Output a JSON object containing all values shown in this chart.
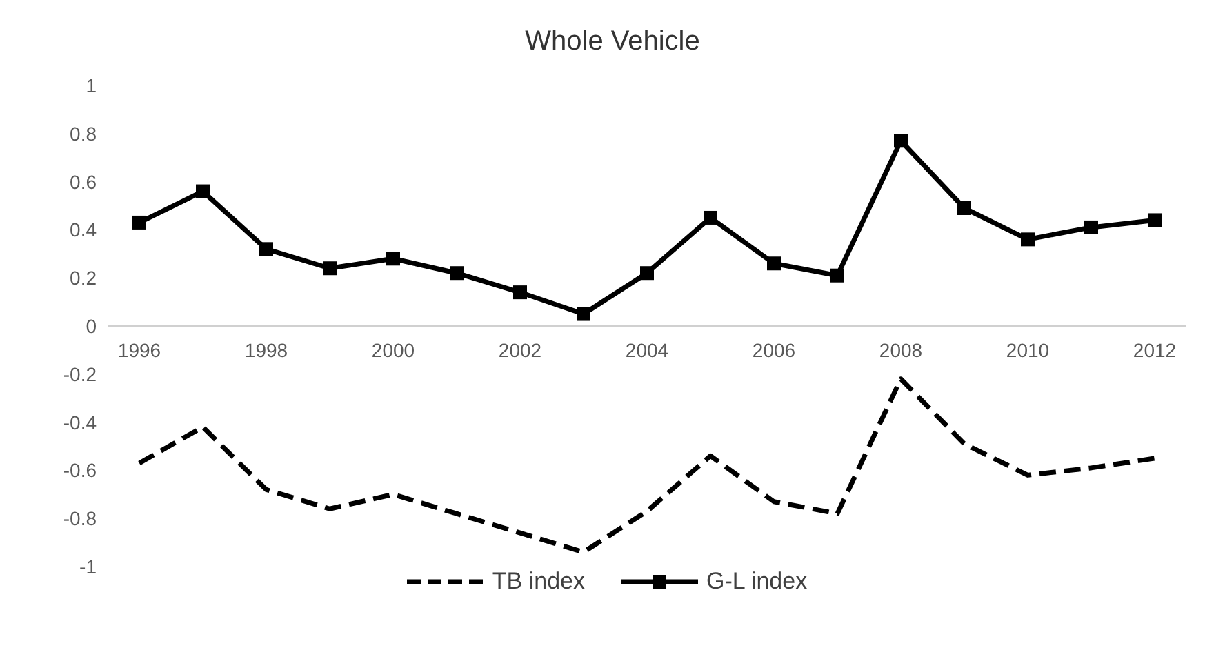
{
  "chart_data": {
    "type": "line",
    "title": "Whole Vehicle",
    "x": [
      1996,
      1997,
      1998,
      1999,
      2000,
      2001,
      2002,
      2003,
      2004,
      2005,
      2006,
      2007,
      2008,
      2009,
      2010,
      2011,
      2012
    ],
    "xlim": [
      1995.5,
      2012.5
    ],
    "xticks": [
      1996,
      1998,
      2000,
      2002,
      2004,
      2006,
      2008,
      2010,
      2012
    ],
    "ylim": [
      -1,
      1
    ],
    "yticks": [
      -1,
      -0.8,
      -0.6,
      -0.4,
      -0.2,
      0,
      0.2,
      0.4,
      0.6,
      0.8,
      1
    ],
    "series": [
      {
        "name": "TB index",
        "color": "#000000",
        "line_style": "dashed",
        "marker": "none",
        "values": [
          -0.57,
          -0.42,
          -0.68,
          -0.76,
          -0.7,
          -0.78,
          -0.86,
          -0.94,
          -0.77,
          -0.54,
          -0.73,
          -0.78,
          -0.22,
          -0.49,
          -0.62,
          -0.59,
          -0.55
        ]
      },
      {
        "name": "G-L index",
        "color": "#000000",
        "line_style": "solid",
        "marker": "square",
        "values": [
          0.43,
          0.56,
          0.32,
          0.24,
          0.28,
          0.22,
          0.14,
          0.05,
          0.22,
          0.45,
          0.26,
          0.21,
          0.77,
          0.49,
          0.36,
          0.41,
          0.44
        ]
      }
    ],
    "grid": false,
    "legend": "bottom"
  }
}
